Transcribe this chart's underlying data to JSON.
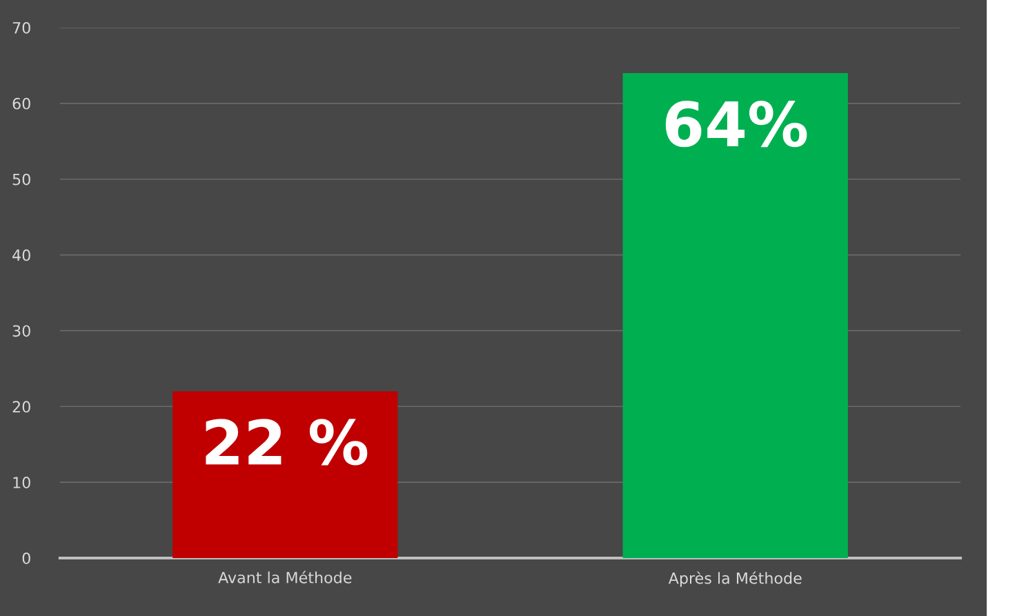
{
  "chart_data": {
    "type": "bar",
    "categories": [
      "Avant la Méthode",
      "Après la Méthode"
    ],
    "values": [
      22,
      64
    ],
    "colors": [
      "#c00000",
      "#00b050"
    ],
    "value_labels": [
      "22 %",
      "64%"
    ],
    "ylim": [
      0,
      70
    ],
    "yticks": [
      0,
      10,
      20,
      30,
      40,
      50,
      60,
      70
    ],
    "grid": "y",
    "legend": false
  }
}
